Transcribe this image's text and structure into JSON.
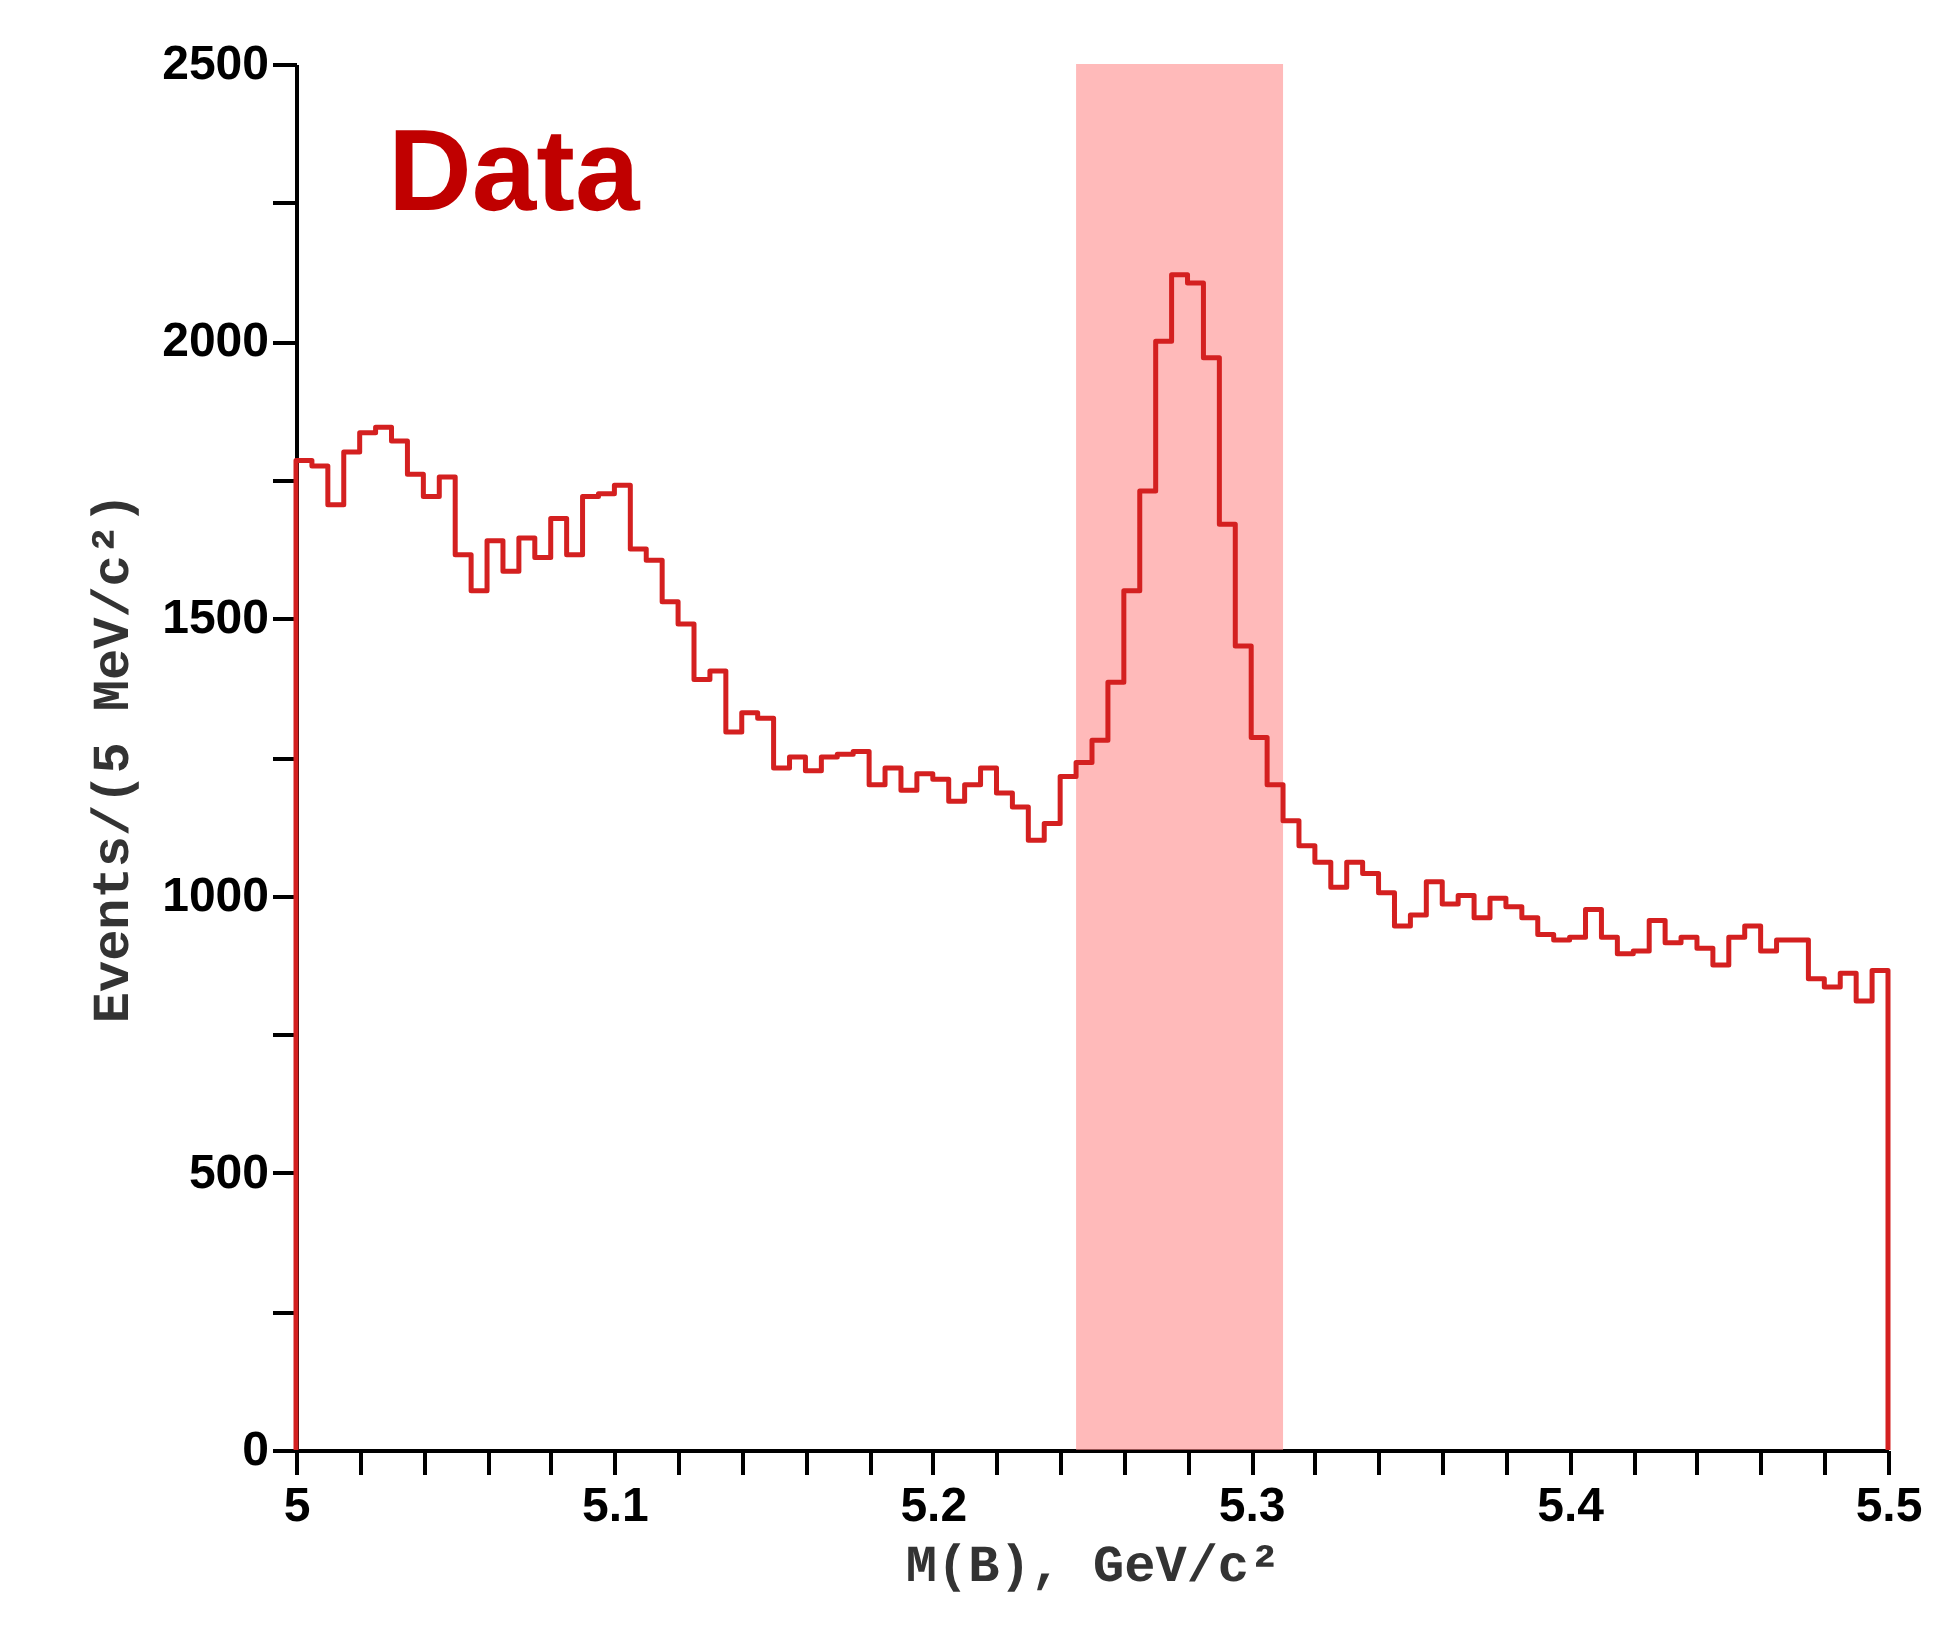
{
  "chart_data": {
    "type": "histogram",
    "xlabel": "M(B), GeV/c²",
    "ylabel": "Events/(5 MeV/c²)",
    "annotations": [
      "Data"
    ],
    "bins": [
      5.0,
      5.005,
      5.01,
      5.015,
      5.02,
      5.025,
      5.03,
      5.035,
      5.04,
      5.045,
      5.05,
      5.055,
      5.06,
      5.065,
      5.07,
      5.075,
      5.08,
      5.085,
      5.09,
      5.095,
      5.1,
      5.105,
      5.11,
      5.115,
      5.12,
      5.125,
      5.13,
      5.135,
      5.14,
      5.145,
      5.15,
      5.155,
      5.16,
      5.165,
      5.17,
      5.175,
      5.18,
      5.185,
      5.19,
      5.195,
      5.2,
      5.205,
      5.21,
      5.215,
      5.22,
      5.225,
      5.23,
      5.235,
      5.24,
      5.245,
      5.25,
      5.255,
      5.26,
      5.265,
      5.27,
      5.275,
      5.28,
      5.285,
      5.29,
      5.295,
      5.3,
      5.305,
      5.31,
      5.315,
      5.32,
      5.325,
      5.33,
      5.335,
      5.34,
      5.345,
      5.35,
      5.355,
      5.36,
      5.365,
      5.37,
      5.375,
      5.38,
      5.385,
      5.39,
      5.395,
      5.4,
      5.405,
      5.41,
      5.415,
      5.42,
      5.425,
      5.43,
      5.435,
      5.44,
      5.445,
      5.45,
      5.455,
      5.46,
      5.465,
      5.47,
      5.475,
      5.48,
      5.485,
      5.49,
      5.495,
      5.5
    ],
    "values": [
      1785,
      1775,
      1705,
      1800,
      1835,
      1845,
      1820,
      1760,
      1720,
      1755,
      1615,
      1550,
      1640,
      1585,
      1645,
      1610,
      1680,
      1615,
      1720,
      1725,
      1740,
      1625,
      1605,
      1530,
      1490,
      1390,
      1405,
      1295,
      1330,
      1320,
      1230,
      1250,
      1225,
      1250,
      1255,
      1260,
      1200,
      1230,
      1190,
      1220,
      1210,
      1170,
      1200,
      1230,
      1185,
      1160,
      1100,
      1130,
      1215,
      1240,
      1280,
      1385,
      1550,
      1730,
      2000,
      2120,
      2105,
      1970,
      1670,
      1450,
      1285,
      1200,
      1135,
      1090,
      1060,
      1015,
      1060,
      1040,
      1005,
      945,
      965,
      1025,
      985,
      1000,
      960,
      995,
      980,
      960,
      930,
      920,
      925,
      975,
      925,
      895,
      900,
      955,
      915,
      925,
      905,
      875,
      925,
      945,
      900,
      920,
      920,
      850,
      835,
      860,
      810,
      865
    ],
    "color": "#d42020",
    "bands": [
      {
        "axis": "x",
        "from": 5.245,
        "to": 5.31,
        "color": "#ff8c8c"
      }
    ],
    "xlim": [
      5.0,
      5.5
    ],
    "xticks": [
      5,
      {
        "value": 5.02,
        "label": null
      },
      {
        "value": 5.04,
        "label": null
      },
      {
        "value": 5.06,
        "label": null
      },
      {
        "value": 5.08,
        "label": null
      },
      5.1,
      {
        "value": 5.12,
        "label": null
      },
      {
        "value": 5.14,
        "label": null
      },
      {
        "value": 5.16,
        "label": null
      },
      {
        "value": 5.18,
        "label": null
      },
      5.2,
      {
        "value": 5.22,
        "label": null
      },
      {
        "value": 5.24,
        "label": null
      },
      {
        "value": 5.26,
        "label": null
      },
      {
        "value": 5.28,
        "label": null
      },
      5.3,
      {
        "value": 5.32,
        "label": null
      },
      {
        "value": 5.34,
        "label": null
      },
      {
        "value": 5.36,
        "label": null
      },
      {
        "value": 5.38,
        "label": null
      },
      5.4,
      {
        "value": 5.42,
        "label": null
      },
      {
        "value": 5.44,
        "label": null
      },
      {
        "value": 5.46,
        "label": null
      },
      {
        "value": 5.48,
        "label": null
      },
      5.5
    ],
    "ylim": [
      0,
      2500
    ],
    "yticks": [
      0,
      {
        "value": 250,
        "label": null
      },
      500,
      {
        "value": 750,
        "label": null
      },
      1000,
      {
        "value": 1250,
        "label": null
      },
      1500,
      {
        "value": 1750,
        "label": null
      },
      2000,
      {
        "value": 2250,
        "label": null
      },
      2500
    ],
    "grid": false
  }
}
